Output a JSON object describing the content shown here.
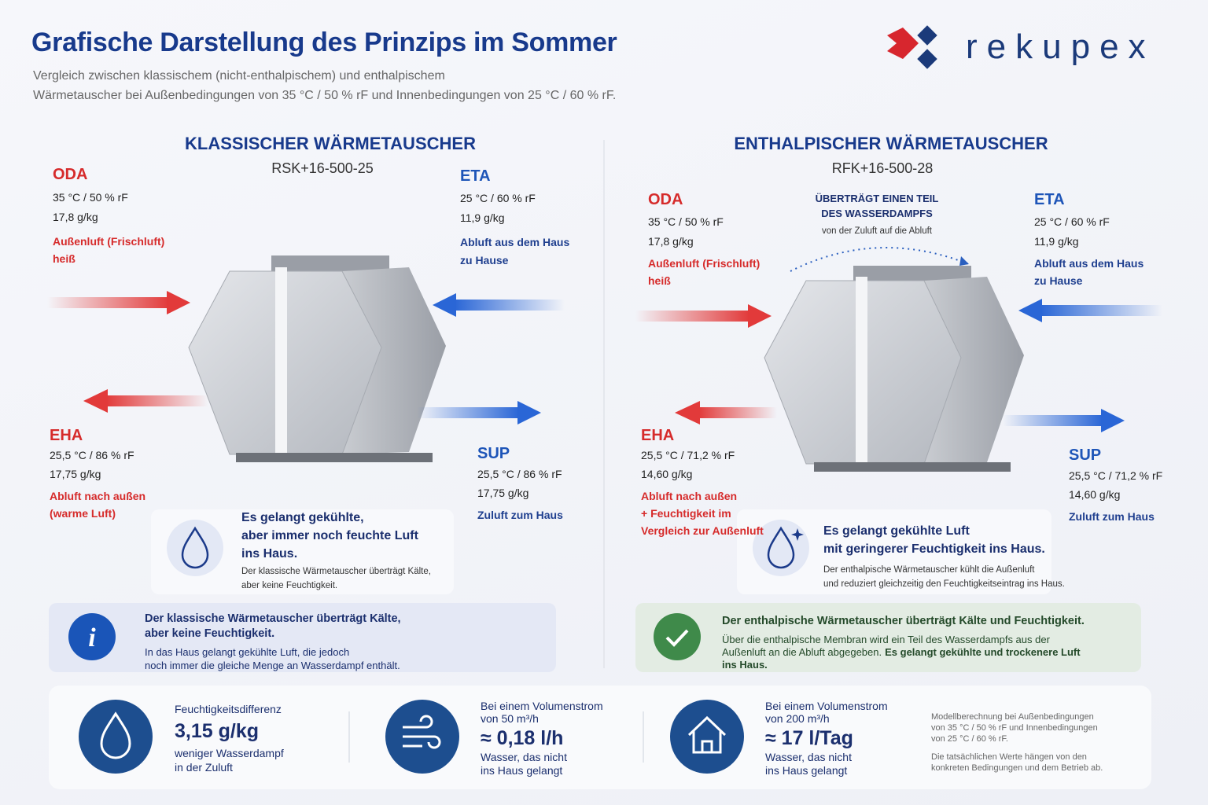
{
  "header": {
    "title": "Grafische Darstellung des Prinzips im Sommer",
    "subtitle": [
      "Vergleich zwischen klassischem (nicht-enthalpischem) und enthalpischem",
      "Wärmetauscher bei Außenbedingungen von 35 °C / 50 % rF und Innenbedingungen von 25 °C / 60 % rF."
    ],
    "logo": "rekupex"
  },
  "panels": [
    {
      "title": "KLASSISCHER WÄRMETAUSCHER",
      "model": "RSK+16-500-25",
      "oda": {
        "label": "ODA",
        "conditions": "35 °C  /  50 % rF",
        "humidity": "17,8 g/kg",
        "description": [
          "Außenluft (Frischluft)",
          "heiß"
        ]
      },
      "eta": {
        "label": "ETA",
        "conditions": "25 °C  /  60 % rF",
        "humidity": "11,9 g/kg",
        "description": [
          "Abluft aus dem Haus",
          "zu Hause"
        ]
      },
      "eha": {
        "label": "EHA",
        "conditions": "25,5 °C  /  86 % rF",
        "humidity": "17,75 g/kg",
        "description": [
          "Abluft nach außen",
          "(warme Luft)"
        ]
      },
      "sup": {
        "label": "SUP",
        "conditions": "25,5 °C  /  86 % rF",
        "humidity": "17,75 g/kg",
        "description": [
          "Zuluft zum Haus"
        ]
      },
      "result": {
        "heading": [
          "Es gelangt gekühlte,",
          "aber immer noch feuchte Luft",
          "ins Haus."
        ],
        "detail": [
          "Der klassische Wärmetauscher überträgt Kälte,",
          "aber keine Feuchtigkeit."
        ]
      },
      "summary": {
        "heading": [
          "Der klassische Wärmetauscher überträgt Kälte,",
          "aber keine Feuchtigkeit."
        ],
        "detail": [
          "In das Haus gelangt gekühlte Luft, die jedoch",
          "noch immer die gleiche Menge an Wasserdampf enthält."
        ]
      }
    },
    {
      "title": "ENTHALPISCHER WÄRMETAUSCHER",
      "model": "RFK+16-500-28",
      "callout": {
        "heading": [
          "ÜBERTRÄGT EINEN TEIL",
          "DES WASSERDAMPFS"
        ],
        "detail": "von der Zuluft auf die Abluft"
      },
      "oda": {
        "label": "ODA",
        "conditions": "35 °C  /  50 % rF",
        "humidity": "17,8 g/kg",
        "description": [
          "Außenluft (Frischluft)",
          "heiß"
        ]
      },
      "eta": {
        "label": "ETA",
        "conditions": "25 °C  /  60 % rF",
        "humidity": "11,9 g/kg",
        "description": [
          "Abluft aus dem Haus",
          "zu Hause"
        ]
      },
      "eha": {
        "label": "EHA",
        "conditions": "25,5 °C  /  71,2 % rF",
        "humidity": "14,60 g/kg",
        "description": [
          "Abluft nach außen",
          "+ Feuchtigkeit im",
          "Vergleich zur Außenluft"
        ]
      },
      "sup": {
        "label": "SUP",
        "conditions": "25,5 °C  /  71,2 % rF",
        "humidity": "14,60 g/kg",
        "description": [
          "Zuluft zum Haus"
        ]
      },
      "result": {
        "heading": [
          "Es gelangt gekühlte Luft",
          "mit geringerer Feuchtigkeit ins Haus."
        ],
        "detail": [
          "Der enthalpische Wärmetauscher kühlt die Außenluft",
          "und reduziert gleichzeitig den Feuchtigkeitseintrag ins Haus."
        ]
      },
      "summary": {
        "heading": [
          "Der enthalpische Wärmetauscher überträgt Kälte und Feuchtigkeit."
        ],
        "detail": [
          "Über die enthalpische Membran wird ein Teil des Wasserdampfs aus der",
          "Außenluft an die Abluft abgegeben."
        ],
        "emphasis": [
          "Es gelangt gekühlte und trockenere Luft",
          "ins Haus."
        ]
      }
    }
  ],
  "stats": [
    {
      "top": [
        "Feuchtigkeitsdifferenz"
      ],
      "value": "3,15 g/kg",
      "bottom": [
        "weniger Wasserdampf",
        "in der Zuluft"
      ]
    },
    {
      "top": [
        "Bei einem Volumenstrom",
        "von 50 m³/h"
      ],
      "value": "≈ 0,18 l/h",
      "bottom": [
        "Wasser, das nicht",
        "ins Haus gelangt"
      ]
    },
    {
      "top": [
        "Bei einem Volumenstrom",
        "von 200 m³/h"
      ],
      "value": "≈ 17 l/Tag",
      "bottom": [
        "Wasser, das nicht",
        "ins Haus gelangt"
      ]
    }
  ],
  "footnote": [
    "Modellberechnung bei Außenbedingungen",
    "von 35 °C / 50 % rF und Innenbedingungen",
    "von 25 °C / 60 % rF.",
    "Die tatsächlichen Werte hängen von den",
    "konkreten Bedingungen und dem Betrieb ab."
  ]
}
